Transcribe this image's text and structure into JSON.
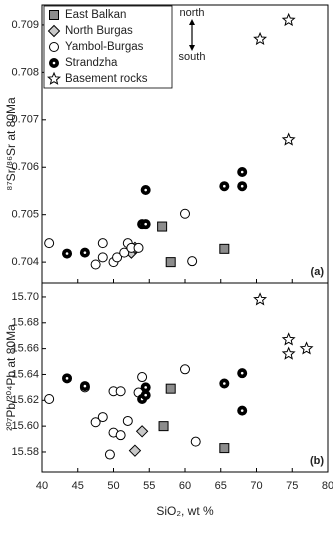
{
  "chart_data": [
    {
      "type": "scatter",
      "panel_label": "(a)",
      "ylabel": "⁸⁷Sr/⁸⁶Sr at 80Ma",
      "ylim": [
        0.70356,
        0.70942
      ],
      "yticks": [
        0.704,
        0.705,
        0.706,
        0.707,
        0.708,
        0.709
      ],
      "legend": "upper left",
      "arrow_top": "north",
      "arrow_bottom": "south",
      "series": [
        {
          "name": "East Balkan",
          "marker": "square",
          "color": "#8c8c8c",
          "x": [
            56.8,
            58,
            65.5
          ],
          "values": [
            0.70475,
            0.704,
            0.70428
          ]
        },
        {
          "name": "North Burgas",
          "marker": "diamond",
          "color": "#c8c8c8",
          "x": [
            52.5,
            53
          ],
          "values": [
            0.7042,
            0.7043
          ]
        },
        {
          "name": "Yambol-Burgas",
          "marker": "circle",
          "color": "#ffffff",
          "x": [
            41,
            47.5,
            48.5,
            48.5,
            50,
            50.5,
            51.5,
            52,
            52.5,
            53.5,
            60,
            61
          ],
          "values": [
            0.7044,
            0.70395,
            0.7044,
            0.7041,
            0.704,
            0.7041,
            0.7042,
            0.7044,
            0.7043,
            0.7043,
            0.70502,
            0.70402
          ]
        },
        {
          "name": "Strandzha",
          "marker": "dotcircle",
          "color": "#000000",
          "x": [
            43.5,
            46,
            54,
            54.5,
            54.5,
            65.5,
            68,
            68
          ],
          "values": [
            0.70418,
            0.7042,
            0.7048,
            0.70552,
            0.7048,
            0.7056,
            0.7056,
            0.7059
          ]
        },
        {
          "name": "Basement rocks",
          "marker": "star",
          "color": "#ffffff",
          "x": [
            70.5,
            74.5,
            74.5
          ],
          "values": [
            0.7087,
            0.7091,
            0.70658
          ]
        }
      ]
    },
    {
      "type": "scatter",
      "panel_label": "(b)",
      "ylabel": "²⁰⁷Pb/²⁰⁴Pb at 80Ma",
      "xlabel": "SiO₂, wt %",
      "xlim": [
        40,
        80
      ],
      "xticks": [
        40,
        45,
        50,
        55,
        60,
        65,
        70,
        75,
        80
      ],
      "ylim": [
        15.5645,
        15.7108
      ],
      "yticks": [
        15.58,
        {
          "value": 15.6,
          "label": "15.60"
        },
        15.62,
        15.64,
        15.66,
        15.68,
        {
          "value": 15.7,
          "label": "15.70"
        }
      ],
      "series": [
        {
          "marker": "square",
          "color": "#8c8c8c",
          "x": [
            58,
            57,
            65.5
          ],
          "values": [
            15.629,
            15.6,
            15.583
          ]
        },
        {
          "marker": "diamond",
          "color": "#c8c8c8",
          "x": [
            53,
            54
          ],
          "values": [
            15.581,
            15.596
          ]
        },
        {
          "marker": "circle",
          "color": "#ffffff",
          "x": [
            41,
            46,
            47.5,
            48.5,
            49.5,
            50,
            50,
            51,
            51,
            52,
            54,
            53.5,
            60,
            61.5
          ],
          "values": [
            15.621,
            15.63,
            15.603,
            15.607,
            15.578,
            15.627,
            15.595,
            15.627,
            15.593,
            15.604,
            15.638,
            15.626,
            15.644,
            15.588
          ]
        },
        {
          "marker": "dotcircle",
          "color": "#000000",
          "x": [
            43.5,
            46,
            54,
            54.5,
            54.5,
            65.5,
            68,
            68
          ],
          "values": [
            15.637,
            15.631,
            15.621,
            15.624,
            15.63,
            15.633,
            15.641,
            15.612
          ]
        },
        {
          "marker": "star",
          "color": "#ffffff",
          "x": [
            70.5,
            74.5,
            74.5,
            77
          ],
          "values": [
            15.698,
            15.667,
            15.656,
            15.66
          ]
        }
      ]
    }
  ]
}
